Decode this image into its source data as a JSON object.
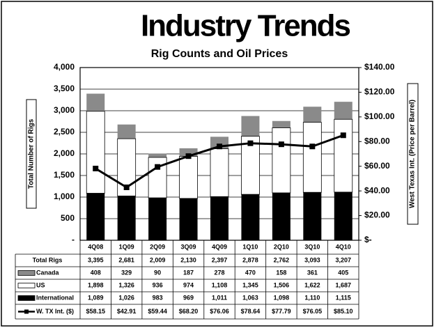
{
  "chart_data": {
    "type": "bar",
    "title": "Industry Trends",
    "subtitle": "Rig Counts and Oil Prices",
    "ylabel": "Total Number of Rigs",
    "y2label": "West Texas Int. (Price per Barrel)",
    "categories": [
      "4Q08",
      "1Q09",
      "2Q09",
      "3Q09",
      "4Q09",
      "1Q10",
      "2Q10",
      "3Q10",
      "4Q10"
    ],
    "ylim": [
      0,
      4000
    ],
    "yticks": [
      {
        "value": 0,
        "label": "-"
      },
      500,
      {
        "value": 1000,
        "label": "1,000"
      },
      {
        "value": 1500,
        "label": "1,500"
      },
      {
        "value": 2000,
        "label": "2,000"
      },
      {
        "value": 2500,
        "label": "2,500"
      },
      {
        "value": 3000,
        "label": "3,000"
      },
      {
        "value": 3500,
        "label": "3,500"
      },
      {
        "value": 4000,
        "label": "4,000"
      }
    ],
    "y2lim": [
      0,
      140
    ],
    "y2ticks": [
      {
        "value": 0,
        "label": "$-"
      },
      {
        "value": 20,
        "label": "$20.00"
      },
      {
        "value": 40,
        "label": "$40.00"
      },
      {
        "value": 60,
        "label": "$60.00"
      },
      {
        "value": 80,
        "label": "$80.00"
      },
      {
        "value": 100,
        "label": "$100.00"
      },
      {
        "value": 120,
        "label": "$120.00"
      },
      {
        "value": 140,
        "label": "$140.00"
      }
    ],
    "grid": true,
    "total": {
      "name": "Total Rigs",
      "values": [
        3395,
        2681,
        2009,
        2130,
        2397,
        2878,
        2762,
        3093,
        3207
      ],
      "value_labels": [
        "3,395",
        "2,681",
        "2,009",
        "2,130",
        "2,397",
        "2,878",
        "2,762",
        "3,093",
        "3,207"
      ]
    },
    "series": [
      {
        "name": "Canada",
        "color": "#8a8a8a",
        "values": [
          408,
          329,
          90,
          187,
          278,
          470,
          158,
          361,
          405
        ]
      },
      {
        "name": "US",
        "color": "#ffffff",
        "values": [
          1898,
          1326,
          936,
          974,
          1108,
          1345,
          1506,
          1622,
          1687
        ],
        "value_labels": [
          "1,898",
          "1,326",
          "936",
          "974",
          "1,108",
          "1,345",
          "1,506",
          "1,622",
          "1,687"
        ]
      },
      {
        "name": "International",
        "color": "#000000",
        "values": [
          1089,
          1026,
          983,
          969,
          1011,
          1063,
          1098,
          1110,
          1115
        ],
        "value_labels": [
          "1,089",
          "1,026",
          "983",
          "969",
          "1,011",
          "1,063",
          "1,098",
          "1,110",
          "1,115"
        ]
      },
      {
        "name": "W. TX Int. ($)",
        "color": "#000000",
        "type": "line",
        "axis": "y2",
        "values": [
          58.15,
          42.91,
          59.44,
          68.2,
          76.06,
          78.64,
          77.79,
          76.05,
          85.1
        ],
        "value_labels": [
          "$58.15",
          "$42.91",
          "$59.44",
          "$68.20",
          "$76.06",
          "$78.64",
          "$77.79",
          "$76.05",
          "$85.10"
        ]
      }
    ]
  }
}
